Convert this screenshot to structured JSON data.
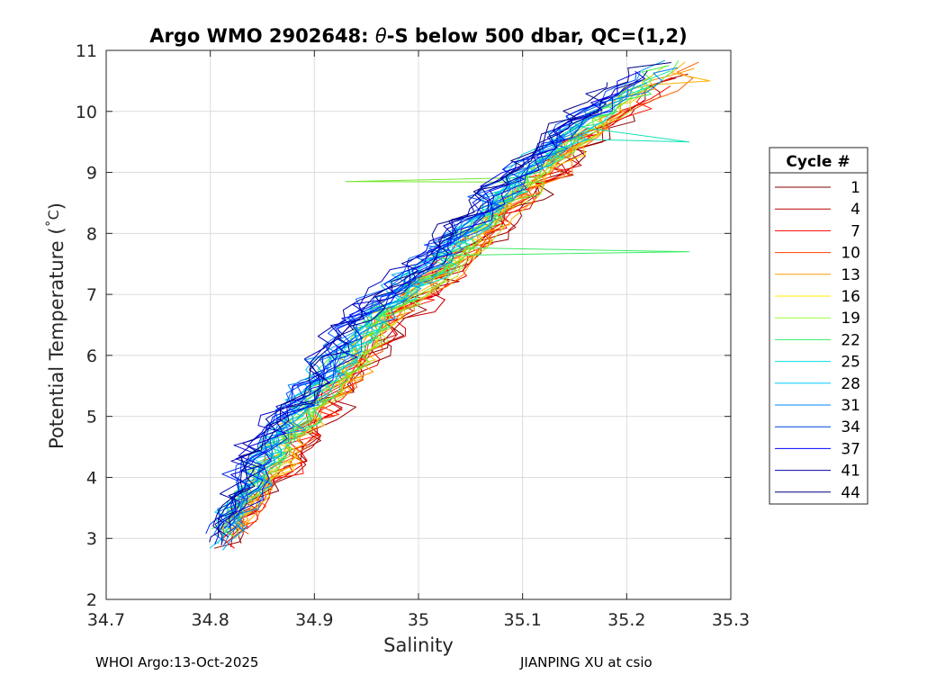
{
  "chart_data": {
    "type": "line",
    "title_prefix": "Argo WMO 2902648: ",
    "title_symbol": "θ",
    "title_suffix": "-S below 500 dbar,  QC=(1,2)",
    "xlabel": "Salinity",
    "ylabel_prefix": "Potential Temperature (",
    "ylabel_unit": "˚C",
    "ylabel_suffix": ")",
    "xlim": [
      34.7,
      35.3
    ],
    "ylim": [
      2,
      11
    ],
    "x_ticks": [
      "34.7",
      "34.8",
      "34.9",
      "35",
      "35.1",
      "35.2",
      "35.3"
    ],
    "y_ticks": [
      "2",
      "3",
      "4",
      "5",
      "6",
      "7",
      "8",
      "9",
      "10",
      "11"
    ],
    "grid": true,
    "legend_title": "Cycle #",
    "legend_position": "right",
    "legend_entries": [
      {
        "label": "1",
        "color": "#800000"
      },
      {
        "label": "4",
        "color": "#c00000"
      },
      {
        "label": "7",
        "color": "#ff0000"
      },
      {
        "label": "10",
        "color": "#ff4000"
      },
      {
        "label": "13",
        "color": "#ff9900"
      },
      {
        "label": "16",
        "color": "#ffee00"
      },
      {
        "label": "19",
        "color": "#99ff33"
      },
      {
        "label": "22",
        "color": "#33ee66"
      },
      {
        "label": "25",
        "color": "#00e0e0"
      },
      {
        "label": "28",
        "color": "#00ccff"
      },
      {
        "label": "31",
        "color": "#0088ff"
      },
      {
        "label": "34",
        "color": "#0044dd"
      },
      {
        "label": "37",
        "color": "#0000ff"
      },
      {
        "label": "41",
        "color": "#0000aa"
      },
      {
        "label": "44",
        "color": "#000080"
      }
    ],
    "profiles": {
      "count": 44,
      "description_note": "theta-S curves; salinity rises from ~34.80 at 2.8 C to ~35.25 at 10.8 C",
      "anchor_points": [
        {
          "theta": 2.75,
          "salinity": 34.805
        },
        {
          "theta": 3.5,
          "salinity": 34.83
        },
        {
          "theta": 4.5,
          "salinity": 34.865
        },
        {
          "theta": 5.5,
          "salinity": 34.91
        },
        {
          "theta": 6.5,
          "salinity": 34.955
        },
        {
          "theta": 7.5,
          "salinity": 35.02
        },
        {
          "theta": 8.5,
          "salinity": 35.08
        },
        {
          "theta": 9.5,
          "salinity": 35.14
        },
        {
          "theta": 10.5,
          "salinity": 35.22
        },
        {
          "theta": 10.85,
          "salinity": 35.25
        }
      ],
      "notable_outliers": [
        {
          "theta": 7.7,
          "salinity": 35.26,
          "cycle": "22"
        },
        {
          "theta": 9.5,
          "salinity": 35.26,
          "cycle": "25"
        },
        {
          "theta": 10.5,
          "salinity": 35.28,
          "cycle": "13"
        },
        {
          "theta": 8.85,
          "salinity": 34.93,
          "cycle": "19"
        }
      ]
    }
  },
  "footer": {
    "left": "WHOI Argo:13-Oct-2025",
    "right": "JIANPING XU at csio"
  }
}
